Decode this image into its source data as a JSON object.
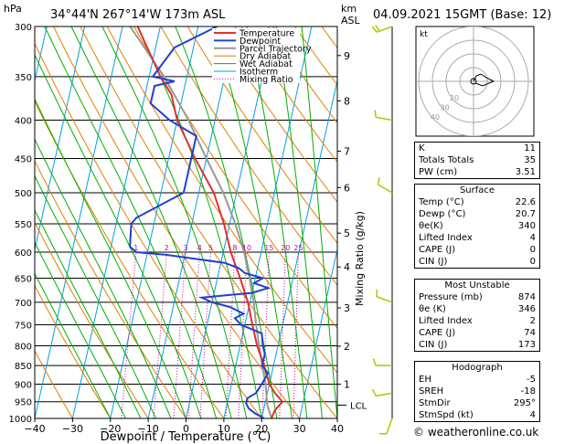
{
  "header": {
    "hpa_label": "hPa",
    "location": "34°44'N  267°14'W  173m  ASL",
    "km_label": "km",
    "asl_label": "ASL",
    "datetime": "04.09.2021  15GMT  (Base: 12)"
  },
  "colors": {
    "temperature": "#e03030",
    "dewpoint": "#2040d0",
    "parcel": "#999999",
    "dry_adiabat": "#e08000",
    "wet_adiabat": "#00b000",
    "isotherm": "#00a0e0",
    "mixing_ratio": "#d000a0",
    "wind": "#a0d000"
  },
  "chart_data": {
    "type": "skew-t",
    "xlabel": "Dewpoint / Temperature (°C)",
    "ylabel_right": "Mixing Ratio (g/kg)",
    "x_ticks": [
      -40,
      -30,
      -20,
      -10,
      0,
      10,
      20,
      30,
      40
    ],
    "x_tick_labels": [
      "−40",
      "−30",
      "−20",
      "−10",
      "0",
      "10",
      "20",
      "30",
      "40"
    ],
    "pressure_ticks": [
      300,
      350,
      400,
      450,
      500,
      550,
      600,
      650,
      700,
      750,
      800,
      850,
      900,
      950,
      1000
    ],
    "pressure_range": [
      300,
      1000
    ],
    "km_ticks": [
      {
        "label": "9",
        "p": 328
      },
      {
        "label": "8",
        "p": 377
      },
      {
        "label": "7",
        "p": 440
      },
      {
        "label": "6",
        "p": 492
      },
      {
        "label": "5",
        "p": 566
      },
      {
        "label": "4",
        "p": 628
      },
      {
        "label": "3",
        "p": 712
      },
      {
        "label": "2",
        "p": 801
      },
      {
        "label": "1",
        "p": 900
      }
    ],
    "lcl_label": "LCL",
    "lcl_p": 960,
    "mixing_ratio_labels": [
      "1",
      "2",
      "3",
      "4",
      "5",
      "8",
      "10",
      "15",
      "20",
      "25"
    ],
    "mixing_ratio_values": [
      1,
      2,
      3,
      4,
      5,
      8,
      10,
      15,
      20,
      25
    ],
    "legend": [
      "Temperature",
      "Dewpoint",
      "Parcel Trajectory",
      "Dry Adiabat",
      "Wet Adiabat",
      "Isotherm",
      "Mixing Ratio"
    ],
    "temperature": {
      "p": [
        1000,
        975,
        950,
        925,
        900,
        850,
        800,
        750,
        700,
        650,
        600,
        550,
        500,
        450,
        400,
        370,
        350,
        300
      ],
      "t": [
        22.6,
        23,
        24.5,
        22,
        20,
        17.5,
        14.5,
        12,
        9.5,
        6,
        2,
        -1.5,
        -6,
        -13,
        -20,
        -23,
        -27,
        -36
      ]
    },
    "dewpoint": {
      "p": [
        1000,
        985,
        970,
        955,
        940,
        925,
        900,
        870,
        850,
        820,
        800,
        770,
        750,
        735,
        725,
        710,
        700,
        690,
        680,
        670,
        660,
        650,
        640,
        630,
        620,
        605,
        600,
        590,
        550,
        540,
        500,
        490,
        450,
        420,
        400,
        380,
        360,
        355,
        350,
        320,
        300
      ],
      "t": [
        20.7,
        18,
        16,
        15,
        15,
        17,
        18,
        19,
        17,
        17,
        16,
        15,
        9,
        7,
        9,
        5,
        0,
        -3,
        10,
        14,
        10,
        12,
        7,
        5,
        1,
        -15,
        -23,
        -25,
        -26,
        -25,
        -14,
        -14,
        -14,
        -14,
        -22,
        -28,
        -28,
        -23,
        -29,
        -25,
        -15
      ]
    },
    "parcel": {
      "p": [
        1000,
        960,
        900,
        850,
        800,
        750,
        700,
        650,
        600,
        550,
        500,
        450,
        400,
        350,
        300
      ],
      "t": [
        22.6,
        20.7,
        19,
        17,
        15,
        13,
        11,
        8.5,
        5.5,
        1.5,
        -3.5,
        -10,
        -17,
        -26,
        -38
      ]
    },
    "wind_barbs": [
      {
        "p": 300,
        "dir": 250,
        "spd": 15
      },
      {
        "p": 400,
        "dir": 280,
        "spd": 10
      },
      {
        "p": 500,
        "dir": 300,
        "spd": 10
      },
      {
        "p": 700,
        "dir": 290,
        "spd": 5
      },
      {
        "p": 850,
        "dir": 270,
        "spd": 5
      },
      {
        "p": 925,
        "dir": 260,
        "spd": 5
      },
      {
        "p": 1000,
        "dir": 200,
        "spd": 5
      }
    ]
  },
  "hodograph": {
    "label": "kt",
    "ring_labels": [
      "20",
      "30",
      "40"
    ]
  },
  "indices": [
    {
      "label": "K",
      "value": "11"
    },
    {
      "label": "Totals Totals",
      "value": "35"
    },
    {
      "label": "PW (cm)",
      "value": "3.51"
    }
  ],
  "surface": {
    "title": "Surface",
    "rows": [
      {
        "label": "Temp (°C)",
        "value": "22.6"
      },
      {
        "label": "Dewp (°C)",
        "value": "20.7"
      },
      {
        "label": "θe(K)",
        "value": "340"
      },
      {
        "label": "Lifted Index",
        "value": "4"
      },
      {
        "label": "CAPE (J)",
        "value": "0"
      },
      {
        "label": "CIN (J)",
        "value": "0"
      }
    ]
  },
  "most_unstable": {
    "title": "Most Unstable",
    "rows": [
      {
        "label": "Pressure (mb)",
        "value": "874"
      },
      {
        "label": "θe (K)",
        "value": "346"
      },
      {
        "label": "Lifted Index",
        "value": "2"
      },
      {
        "label": "CAPE (J)",
        "value": "74"
      },
      {
        "label": "CIN (J)",
        "value": "173"
      }
    ]
  },
  "hodograph_table": {
    "title": "Hodograph",
    "rows": [
      {
        "label": "EH",
        "value": "-5"
      },
      {
        "label": "SREH",
        "value": "-18"
      },
      {
        "label": "StmDir",
        "value": "295°"
      },
      {
        "label": "StmSpd (kt)",
        "value": "4"
      }
    ]
  },
  "copyright": "© weatheronline.co.uk"
}
